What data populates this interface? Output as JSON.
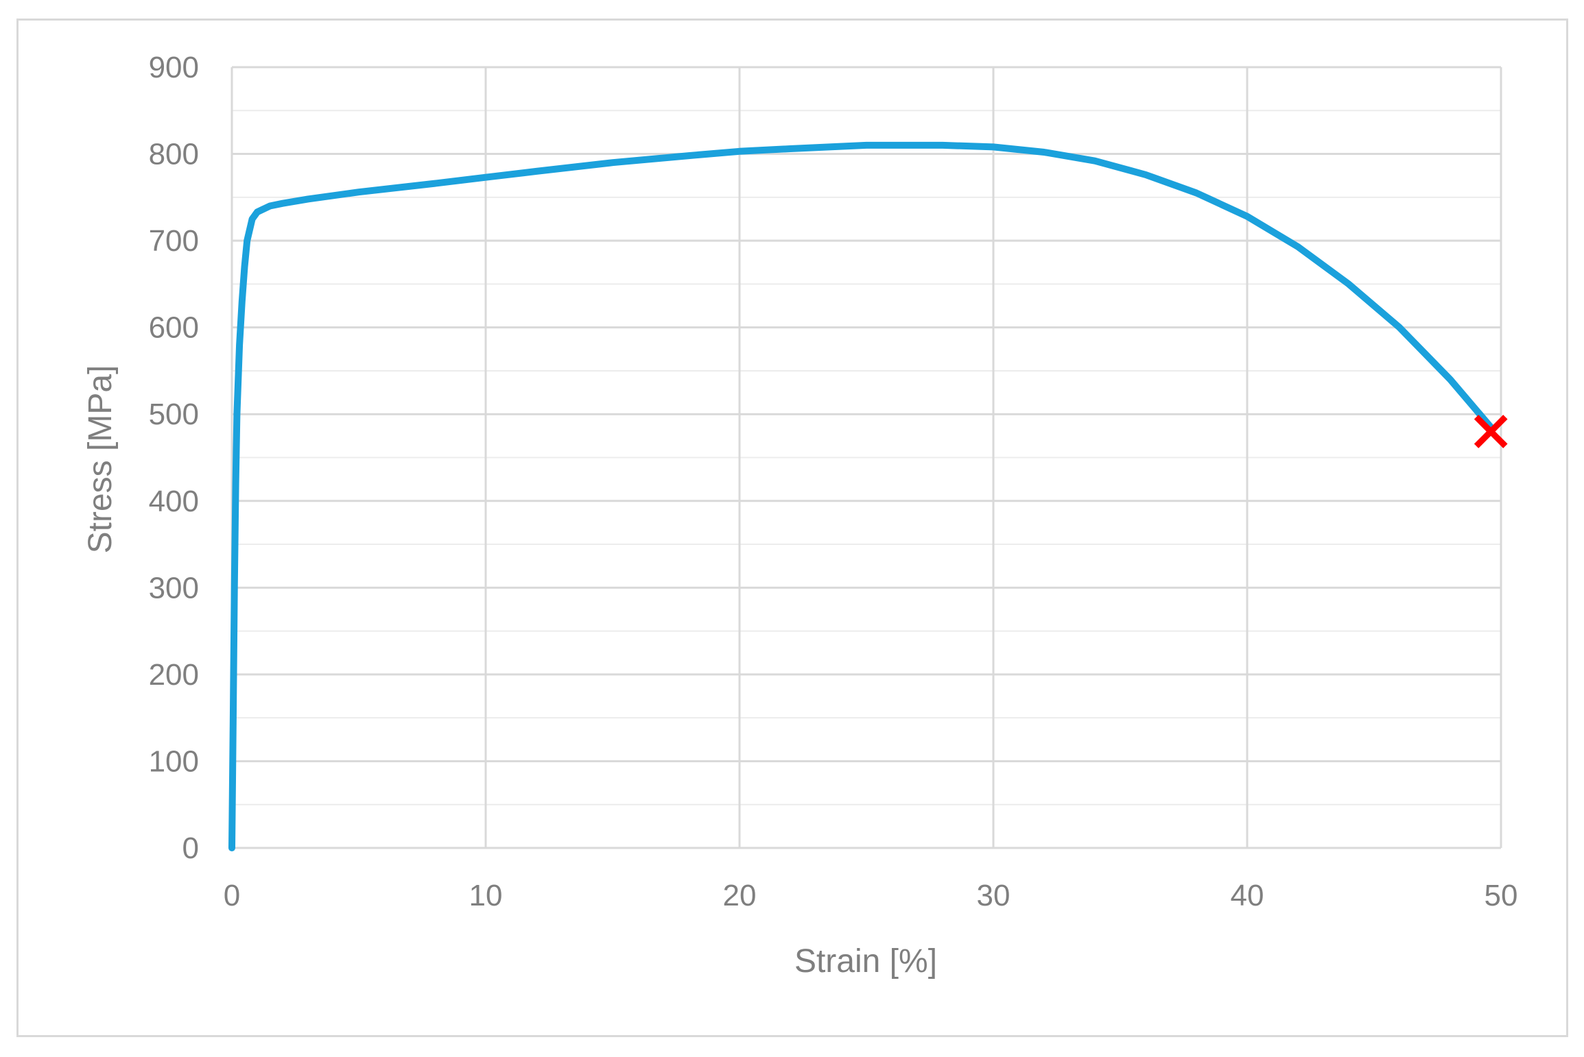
{
  "chart_data": {
    "type": "line",
    "title": "",
    "xlabel": "Strain [%]",
    "ylabel": "Stress [MPa]",
    "xlim": [
      0,
      50
    ],
    "ylim": [
      0,
      900
    ],
    "x_ticks": [
      "0",
      "10",
      "20",
      "30",
      "40",
      "50"
    ],
    "y_ticks": [
      "0",
      "100",
      "200",
      "300",
      "400",
      "500",
      "600",
      "700",
      "800",
      "900"
    ],
    "grid": "major and minor horizontal, major vertical",
    "legend": "none",
    "series": [
      {
        "color": "#1ba1dc",
        "points": [
          [
            0.0,
            0
          ],
          [
            0.05,
            150
          ],
          [
            0.1,
            300
          ],
          [
            0.15,
            420
          ],
          [
            0.2,
            500
          ],
          [
            0.3,
            580
          ],
          [
            0.4,
            630
          ],
          [
            0.5,
            670
          ],
          [
            0.6,
            700
          ],
          [
            0.8,
            725
          ],
          [
            1.0,
            733
          ],
          [
            1.5,
            740
          ],
          [
            2.0,
            743
          ],
          [
            3.0,
            748
          ],
          [
            5.0,
            756
          ],
          [
            8.0,
            766
          ],
          [
            10.0,
            773
          ],
          [
            12.0,
            780
          ],
          [
            15.0,
            790
          ],
          [
            18.0,
            798
          ],
          [
            20.0,
            803
          ],
          [
            22.0,
            806
          ],
          [
            25.0,
            810
          ],
          [
            28.0,
            810
          ],
          [
            30.0,
            808
          ],
          [
            32.0,
            802
          ],
          [
            34.0,
            792
          ],
          [
            36.0,
            776
          ],
          [
            38.0,
            755
          ],
          [
            40.0,
            728
          ],
          [
            42.0,
            693
          ],
          [
            44.0,
            650
          ],
          [
            46.0,
            600
          ],
          [
            48.0,
            540
          ],
          [
            49.6,
            485
          ]
        ]
      }
    ],
    "fracture_marker": {
      "x": 49.6,
      "y": 480,
      "symbol": "x",
      "color": "#ff0000"
    },
    "colors": {
      "grid": "#d9d9d9",
      "text": "#7f7f7f",
      "frame": "#d9d9d9"
    }
  }
}
